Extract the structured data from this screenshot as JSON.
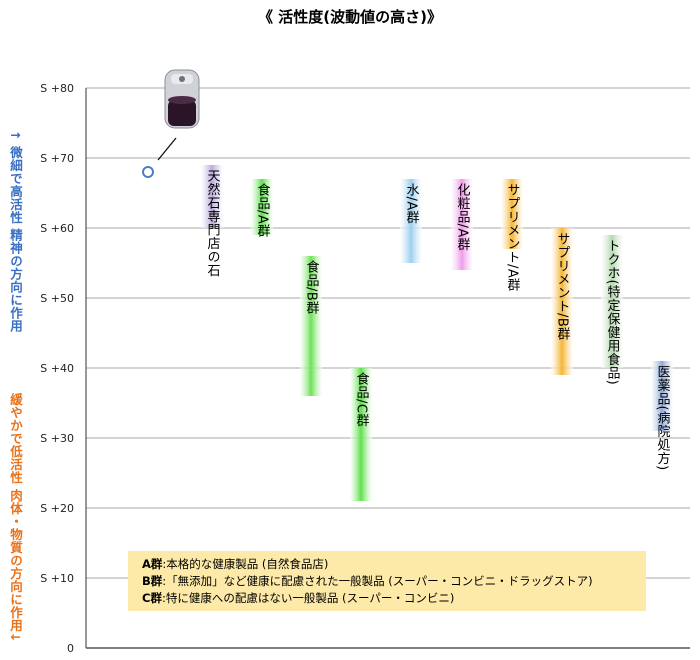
{
  "chart_data": {
    "type": "range-bar",
    "title": "《 活性度(波動値の高さ)》",
    "y_axis": {
      "ticks": [
        {
          "value": 80,
          "label": "S +80"
        },
        {
          "value": 70,
          "label": "S +70"
        },
        {
          "value": 60,
          "label": "S +60"
        },
        {
          "value": 50,
          "label": "S +50"
        },
        {
          "value": 40,
          "label": "S +40"
        },
        {
          "value": 30,
          "label": "S +30"
        },
        {
          "value": 20,
          "label": "S +20"
        },
        {
          "value": 10,
          "label": "S +10"
        },
        {
          "value": 0,
          "label": "0"
        }
      ],
      "ylim": [
        0,
        80
      ],
      "grid": true
    },
    "marker": {
      "label": "",
      "value": 68,
      "note": "glass container image with pointer line"
    },
    "bars": [
      {
        "label": "天然石専門店の石",
        "low": 60,
        "high": 69,
        "color": "#b9a9dd"
      },
      {
        "label": "食品/A群",
        "low": 59,
        "high": 67,
        "color": "#5fe04c"
      },
      {
        "label": "食品/B群",
        "low": 36,
        "high": 56,
        "color": "#6fe05a"
      },
      {
        "label": "食品/C群",
        "low": 21,
        "high": 40,
        "color": "#5fe04c"
      },
      {
        "label": "水/A群",
        "low": 55,
        "high": 67,
        "color": "#9ccfee"
      },
      {
        "label": "化粧品/A群",
        "low": 54,
        "high": 67,
        "color": "#ef9ce8"
      },
      {
        "label": "サプリメント/A群",
        "low": 57,
        "high": 67,
        "color": "#f5b534"
      },
      {
        "label": "サプリメント/B群",
        "low": 39,
        "high": 60,
        "color": "#f5b534"
      },
      {
        "label": "トクホ(特定保健用食品)",
        "low": 40,
        "high": 59,
        "color": "#b4d9b0"
      },
      {
        "label": "医薬品(病院処方)",
        "low": 31,
        "high": 41,
        "color": "#8eaad6"
      }
    ]
  },
  "side_labels": {
    "top": "↑ 微細で高活性 精神の方向に作用",
    "bottom": "緩やかで低活性 肉体・物質の方向に作用↓"
  },
  "legend": {
    "rows": [
      {
        "key": "A群",
        "text": ":本格的な健康製品 (自然食品店)"
      },
      {
        "key": "B群",
        "text": ":「無添加」など健康に配慮された一般製品 (スーパー・コンビニ・ドラッグストア)"
      },
      {
        "key": "C群",
        "text": ":特に健康への配慮はない一般製品 (スーパー・コンビニ)"
      }
    ]
  },
  "colors": {
    "grid": "#a8a8a8",
    "axis": "#555555",
    "marker": "#4a7fc8"
  }
}
